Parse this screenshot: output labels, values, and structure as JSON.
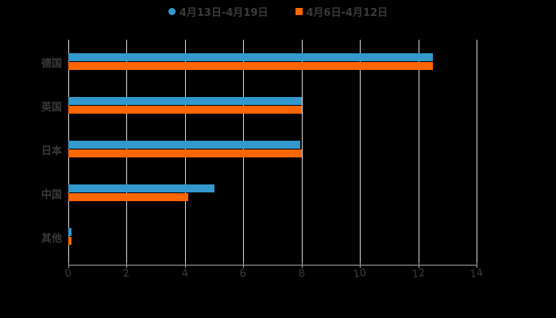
{
  "chart_data": {
    "type": "bar",
    "orientation": "horizontal",
    "title": "",
    "xlabel": "",
    "ylabel": "",
    "categories": [
      "德国",
      "英国",
      "日本",
      "中国",
      "其他"
    ],
    "series": [
      {
        "name": "4月13日-4月19日",
        "color": "#3399cc",
        "values": [
          12.5,
          8.0,
          7.95,
          5.0,
          0.1
        ]
      },
      {
        "name": "4月6日-4月12日",
        "color": "#ff6600",
        "values": [
          12.5,
          8.0,
          8.0,
          4.1,
          0.1
        ]
      }
    ],
    "xlim": [
      0,
      14
    ],
    "x_ticks": [
      "0",
      "2",
      "4",
      "6",
      "8",
      "10",
      "12",
      "14"
    ],
    "grid": true,
    "legend_position": "top"
  },
  "legend": [
    {
      "label": "4月13日-4月19日",
      "color": "#3399cc",
      "shape": "circle"
    },
    {
      "label": "4月6日-4月12日",
      "color": "#ff6600",
      "shape": "square"
    }
  ]
}
